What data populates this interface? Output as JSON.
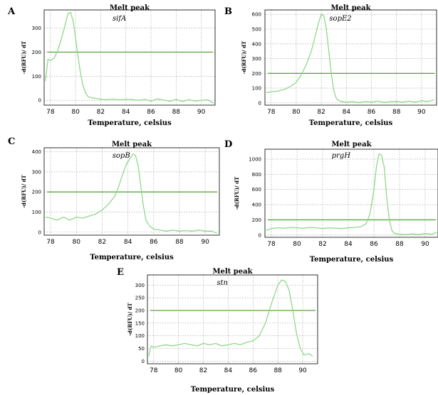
{
  "chart_data": [
    {
      "panel": "A",
      "type": "line",
      "title": "Melt peak",
      "gene": "sifA",
      "xlabel": "Temperature, celsius",
      "ylabel": "-d(RFU)/ dT",
      "xlim": [
        77.5,
        91.1
      ],
      "ylim": [
        -20,
        375
      ],
      "xticks": [
        78,
        80,
        82,
        84,
        86,
        88,
        90
      ],
      "yticks": [
        0,
        100,
        200,
        300
      ],
      "threshold": 200,
      "line_color": "#8fd88a",
      "threshold_color": "#5aa83c",
      "series": [
        {
          "x": [
            77.6,
            77.8,
            78.0,
            78.3,
            78.6,
            78.9,
            79.2,
            79.4,
            79.6,
            79.8,
            80.0,
            80.2,
            80.4,
            80.6,
            80.8,
            81.0,
            81.3,
            81.6,
            82.0,
            82.5,
            83.0,
            83.5,
            84.0,
            84.5,
            85.0,
            85.5,
            86.0,
            86.5,
            87.0,
            87.5,
            88.0,
            88.5,
            89.0,
            89.5,
            90.0,
            90.5,
            91.0
          ],
          "y": [
            80,
            170,
            165,
            175,
            210,
            260,
            320,
            360,
            365,
            330,
            260,
            180,
            110,
            60,
            30,
            15,
            10,
            8,
            5,
            3,
            5,
            2,
            4,
            3,
            0,
            4,
            -3,
            6,
            1,
            -4,
            4,
            -5,
            3,
            -3,
            0,
            2,
            -12
          ]
        }
      ]
    },
    {
      "panel": "B",
      "type": "line",
      "title": "Melt peak",
      "gene": "sopE2",
      "xlabel": "Temperature, celsius",
      "ylabel": "-d(RFU)/ dT",
      "xlim": [
        77.5,
        91.2
      ],
      "ylim": [
        -15,
        630
      ],
      "xticks": [
        78,
        80,
        82,
        84,
        86,
        88,
        90
      ],
      "yticks": [
        0,
        100,
        200,
        300,
        400,
        500,
        600
      ],
      "threshold": 200,
      "line_color": "#8fd88a",
      "threshold_color": "#5aa83c",
      "series": [
        {
          "x": [
            77.6,
            78.0,
            78.5,
            79.0,
            79.5,
            80.0,
            80.4,
            80.8,
            81.2,
            81.5,
            81.8,
            82.0,
            82.2,
            82.4,
            82.6,
            82.8,
            83.0,
            83.2,
            83.5,
            84.0,
            84.5,
            85.0,
            85.5,
            86.0,
            86.5,
            87.0,
            87.5,
            88.0,
            88.5,
            89.0,
            89.5,
            90.0,
            90.5,
            91.0
          ],
          "y": [
            70,
            75,
            80,
            90,
            110,
            140,
            190,
            260,
            350,
            450,
            550,
            600,
            590,
            500,
            350,
            200,
            80,
            30,
            10,
            5,
            8,
            3,
            10,
            5,
            12,
            4,
            8,
            10,
            5,
            12,
            5,
            15,
            10,
            20
          ]
        }
      ]
    },
    {
      "panel": "C",
      "type": "line",
      "title": "Melt peak",
      "gene": "sopB",
      "xlabel": "Temperature, celsius",
      "ylabel": "-d(RFU)/ dT",
      "xlim": [
        77.5,
        91.1
      ],
      "ylim": [
        -15,
        420
      ],
      "xticks": [
        78,
        80,
        82,
        84,
        86,
        88,
        90
      ],
      "yticks": [
        0,
        100,
        200,
        300,
        400
      ],
      "threshold": 200,
      "line_color": "#8fd88a",
      "threshold_color": "#5aa83c",
      "series": [
        {
          "x": [
            77.6,
            78.0,
            78.5,
            79.0,
            79.5,
            80.0,
            80.5,
            81.0,
            81.5,
            82.0,
            82.5,
            83.0,
            83.3,
            83.6,
            83.9,
            84.2,
            84.4,
            84.6,
            84.8,
            85.0,
            85.2,
            85.4,
            85.7,
            86.0,
            86.5,
            87.0,
            87.5,
            88.0,
            88.5,
            89.0,
            89.5,
            90.0,
            90.5,
            90.9
          ],
          "y": [
            75,
            70,
            60,
            75,
            60,
            75,
            70,
            80,
            90,
            110,
            140,
            180,
            230,
            290,
            340,
            370,
            390,
            380,
            330,
            230,
            130,
            60,
            30,
            15,
            10,
            5,
            10,
            5,
            8,
            5,
            10,
            5,
            5,
            -5
          ]
        }
      ]
    },
    {
      "panel": "D",
      "type": "line",
      "title": "Melt peak",
      "gene": "prgH",
      "xlabel": "Temperature, celsius",
      "ylabel": "-d(RFU)/ dT",
      "xlim": [
        77.5,
        91.0
      ],
      "ylim": [
        -30,
        1130
      ],
      "xticks": [
        78,
        80,
        82,
        84,
        86,
        88,
        90
      ],
      "yticks": [
        0,
        200,
        400,
        600,
        800,
        1000
      ],
      "threshold": 200,
      "line_color": "#8fd88a",
      "threshold_color": "#5aa83c",
      "series": [
        {
          "x": [
            77.6,
            78.0,
            78.5,
            79.0,
            79.5,
            80.0,
            80.5,
            81.0,
            81.5,
            82.0,
            82.5,
            83.0,
            83.5,
            84.0,
            84.5,
            85.0,
            85.4,
            85.7,
            86.0,
            86.2,
            86.4,
            86.6,
            86.8,
            87.0,
            87.2,
            87.4,
            87.6,
            88.0,
            88.5,
            89.0,
            89.5,
            90.0,
            90.5,
            91.0
          ],
          "y": [
            60,
            85,
            95,
            90,
            100,
            95,
            90,
            100,
            95,
            85,
            95,
            90,
            85,
            95,
            100,
            110,
            150,
            280,
            600,
            900,
            1070,
            1050,
            900,
            500,
            200,
            60,
            20,
            10,
            5,
            15,
            5,
            20,
            10,
            40
          ]
        }
      ]
    },
    {
      "panel": "E",
      "type": "line",
      "title": "Melt peak",
      "gene": "stn",
      "xlabel": "Temperature, celsius",
      "ylabel": "-d(RFU)/ dT",
      "xlim": [
        77.5,
        91.2
      ],
      "ylim": [
        -10,
        340
      ],
      "xticks": [
        78,
        80,
        82,
        84,
        86,
        88,
        90
      ],
      "yticks": [
        0,
        50,
        100,
        150,
        200,
        250,
        300
      ],
      "threshold": 200,
      "line_color": "#8fd88a",
      "threshold_color": "#5aa83c",
      "series": [
        {
          "x": [
            77.6,
            77.8,
            78.0,
            78.5,
            79.0,
            79.5,
            80.0,
            80.5,
            81.0,
            81.5,
            82.0,
            82.5,
            83.0,
            83.5,
            84.0,
            84.5,
            85.0,
            85.5,
            86.0,
            86.5,
            87.0,
            87.5,
            88.0,
            88.3,
            88.6,
            88.9,
            89.2,
            89.5,
            89.8,
            90.1,
            90.5,
            90.8
          ],
          "y": [
            20,
            60,
            55,
            60,
            65,
            60,
            65,
            70,
            65,
            60,
            70,
            65,
            70,
            60,
            65,
            70,
            65,
            75,
            80,
            100,
            150,
            230,
            300,
            320,
            315,
            280,
            200,
            110,
            50,
            25,
            30,
            20
          ]
        }
      ]
    }
  ]
}
